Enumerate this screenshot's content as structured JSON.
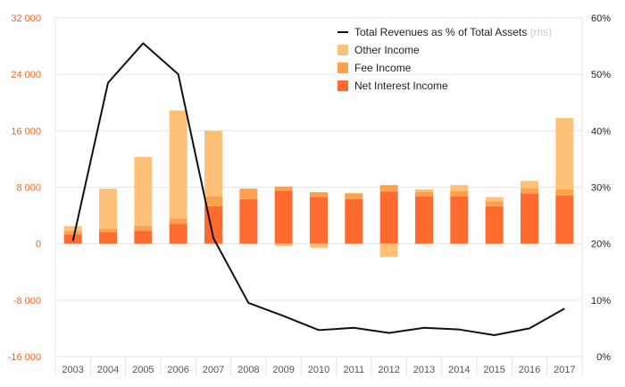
{
  "chart_data": {
    "type": "bar",
    "stacked": true,
    "categories": [
      "2003",
      "2004",
      "2005",
      "2006",
      "2007",
      "2008",
      "2009",
      "2010",
      "2011",
      "2012",
      "2013",
      "2014",
      "2015",
      "2016",
      "2017"
    ],
    "series": [
      {
        "name": "Net Interest Income",
        "color": "#ff6a2f",
        "values": [
          1300,
          1600,
          1800,
          2800,
          5300,
          6300,
          7500,
          6600,
          6300,
          7400,
          6700,
          6700,
          5300,
          7100,
          6800
        ]
      },
      {
        "name": "Fee Income",
        "color": "#ffa04d",
        "values": [
          500,
          500,
          700,
          800,
          1400,
          1500,
          600,
          700,
          800,
          900,
          700,
          800,
          700,
          800,
          900
        ]
      },
      {
        "name": "Other Income",
        "color": "#ffc177",
        "values": [
          700,
          5700,
          9800,
          15300,
          9300,
          0,
          -300,
          -600,
          100,
          -1900,
          300,
          800,
          600,
          1000,
          10100
        ]
      }
    ],
    "line": {
      "name": "Total Revenues as % of Total Assets",
      "note": "(rhs)",
      "color": "#111111",
      "values": [
        20.5,
        48.5,
        55.5,
        50,
        21,
        9.5,
        7.2,
        4.7,
        5.1,
        4.2,
        5.1,
        4.8,
        3.8,
        5,
        8.5
      ]
    },
    "y_left": {
      "min": -16000,
      "max": 32000,
      "ticks": [
        32000,
        24000,
        16000,
        8000,
        0,
        -8000,
        -16000
      ],
      "tick_labels": [
        "32 000",
        "24 000",
        "16 000",
        "8 000",
        "0",
        "-8 000",
        "-16 000"
      ],
      "color": "#f26522"
    },
    "y_right": {
      "min": 0,
      "max": 60,
      "ticks": [
        60,
        50,
        40,
        30,
        20,
        10,
        0
      ],
      "tick_labels": [
        "60%",
        "50%",
        "40%",
        "30%",
        "20%",
        "10%",
        "0%"
      ]
    },
    "legend": {
      "position": "top-right",
      "items": [
        {
          "label": "Total Revenues as % of Total Assets",
          "note": "(rhs)",
          "kind": "line",
          "color": "#111111"
        },
        {
          "label": "Other Income",
          "kind": "box",
          "color": "#ffc177"
        },
        {
          "label": "Fee Income",
          "kind": "box",
          "color": "#ffa04d"
        },
        {
          "label": "Net Interest Income",
          "kind": "box",
          "color": "#ff6a2f"
        }
      ]
    },
    "grid": true
  }
}
